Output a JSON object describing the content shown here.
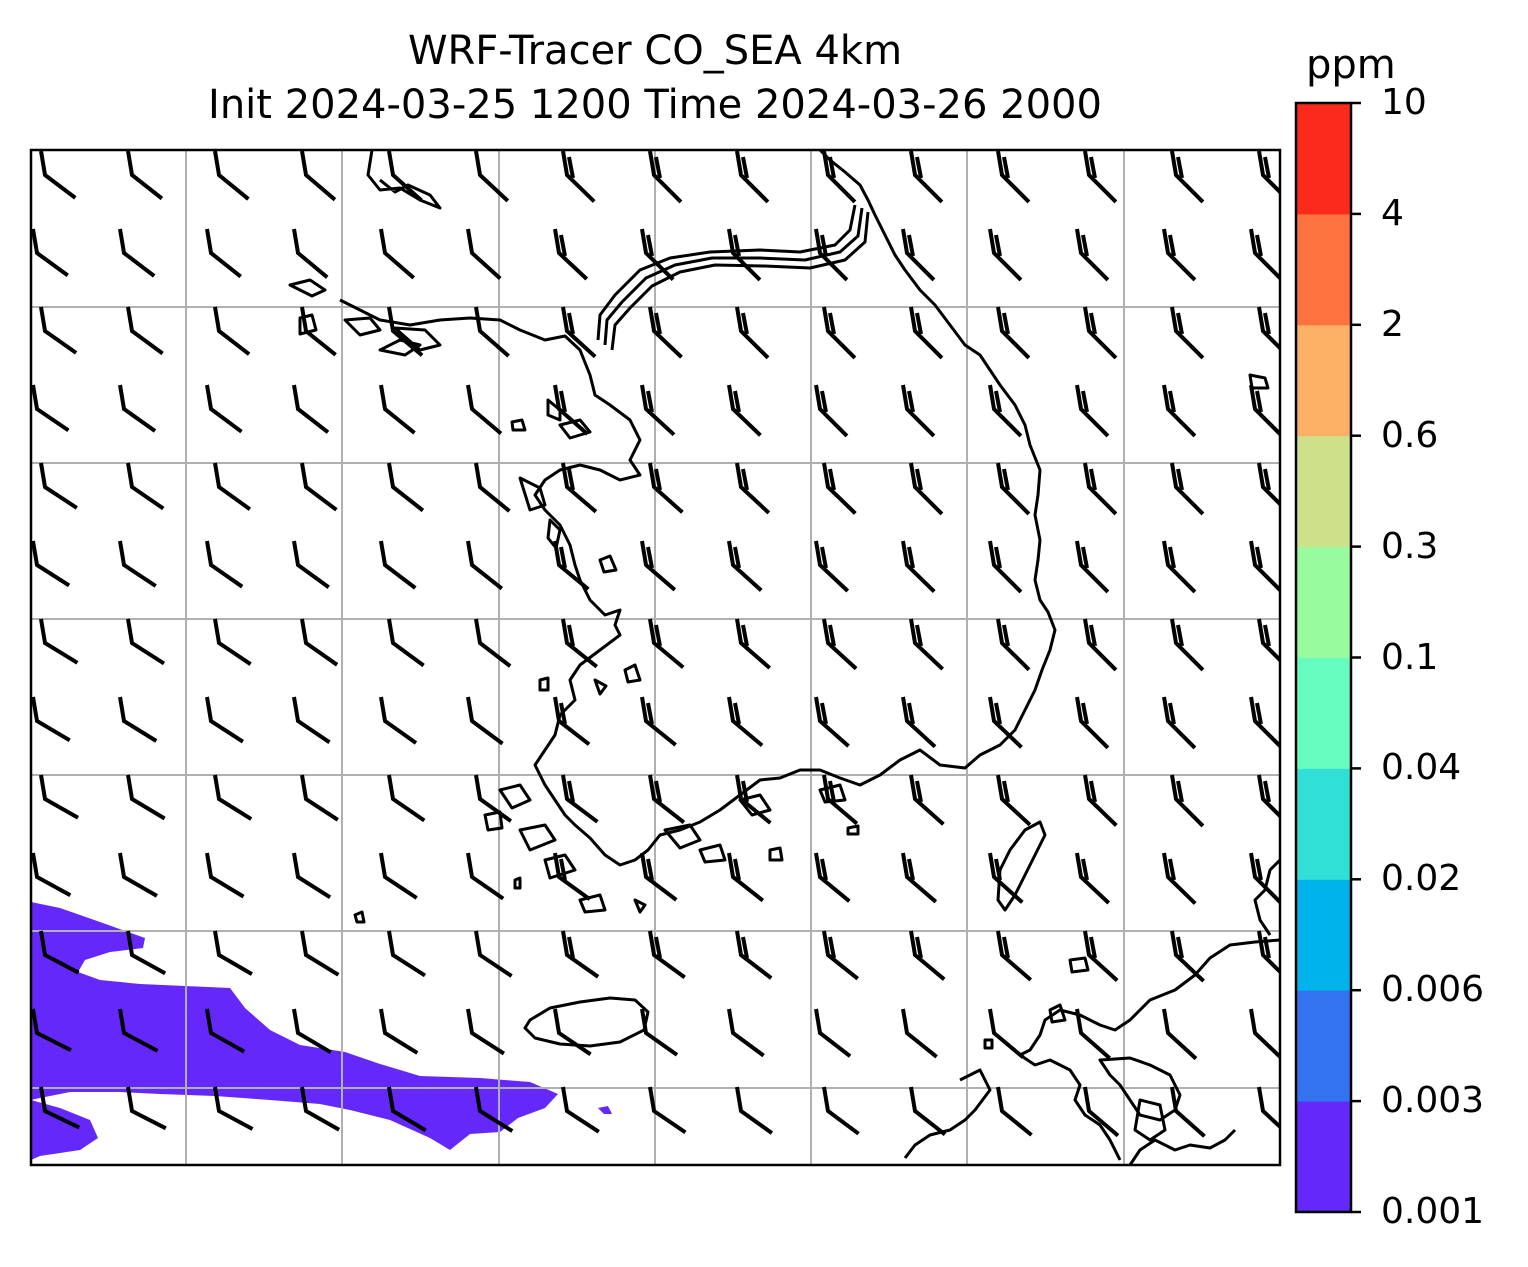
{
  "title_line1": "WRF-Tracer CO_SEA 4km",
  "title_line2": "Init 2024-03-25 1200 Time 2024-03-26 2000",
  "colorbar": {
    "unit": "ppm",
    "levels": [
      "0.001",
      "0.003",
      "0.006",
      "0.02",
      "0.04",
      "0.1",
      "0.3",
      "0.6",
      "2",
      "4",
      "10"
    ],
    "colors": [
      "#6428fa",
      "#3373f0",
      "#00b4eb",
      "#30e0d6",
      "#66fcbf",
      "#98fc9e",
      "#cde18a",
      "#fcb065",
      "#fc733f",
      "#fc2a1b"
    ]
  },
  "map": {
    "gridlines": true,
    "grid_color": "#b0b0b0",
    "coastline_color": "#000000",
    "tracer_color": "#6428fa",
    "wind_barbs": true
  }
}
